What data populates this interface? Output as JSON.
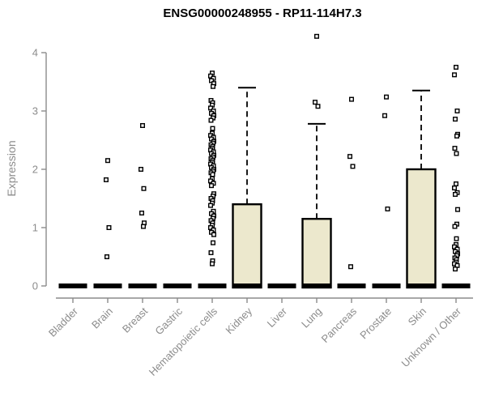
{
  "chart_data": {
    "type": "boxplot",
    "title": "ENSG00000248955 - RP11-114H7.3",
    "ylabel": "Expression",
    "xlabel": "",
    "ylim": [
      0,
      4
    ],
    "yticks": [
      0,
      1,
      2,
      3,
      4
    ],
    "grid": false,
    "legend": "none",
    "box_fill_color": "#ece8cd",
    "box_stroke_color": "#000000",
    "axis_color": "#8c8c8c",
    "categories": [
      "Bladder",
      "Brain",
      "Breast",
      "Gastric",
      "Hematopoietic cells",
      "Kidney",
      "Liver",
      "Lung",
      "Pancreas",
      "Prostate",
      "Skin",
      "Unknown / Other"
    ],
    "boxes": [
      {
        "category": "Bladder",
        "median": 0,
        "q1": 0,
        "q3": 0,
        "whisker_low": 0,
        "whisker_high": 0,
        "outliers": []
      },
      {
        "category": "Brain",
        "median": 0,
        "q1": 0,
        "q3": 0,
        "whisker_low": 0,
        "whisker_high": 0,
        "outliers": [
          2.15,
          1.82,
          1.0,
          0.5
        ]
      },
      {
        "category": "Breast",
        "median": 0,
        "q1": 0,
        "q3": 0,
        "whisker_low": 0,
        "whisker_high": 0,
        "outliers": [
          2.75,
          2.0,
          1.67,
          1.25,
          1.08,
          1.02
        ]
      },
      {
        "category": "Gastric",
        "median": 0,
        "q1": 0,
        "q3": 0,
        "whisker_low": 0,
        "whisker_high": 0,
        "outliers": []
      },
      {
        "category": "Hematopoietic cells",
        "median": 0,
        "q1": 0,
        "q3": 0,
        "whisker_low": 0,
        "whisker_high": 0,
        "outliers": [
          3.65,
          3.6,
          3.56,
          3.52,
          3.47,
          3.42,
          3.18,
          3.14,
          3.1,
          3.05,
          3.0,
          2.96,
          2.92,
          2.88,
          2.84,
          2.7,
          2.62,
          2.58,
          2.55,
          2.52,
          2.48,
          2.45,
          2.42,
          2.39,
          2.36,
          2.33,
          2.3,
          2.27,
          2.24,
          2.21,
          2.18,
          2.15,
          2.12,
          2.09,
          2.06,
          2.03,
          2.0,
          1.97,
          1.94,
          1.91,
          1.84,
          1.8,
          1.76,
          1.72,
          1.58,
          1.54,
          1.5,
          1.46,
          1.42,
          1.38,
          1.28,
          1.24,
          1.2,
          1.16,
          1.12,
          1.08,
          1.04,
          1.0,
          0.96,
          0.92,
          0.88,
          0.74,
          0.57,
          0.43,
          0.38
        ]
      },
      {
        "category": "Kidney",
        "median": 0,
        "q1": 0,
        "q3": 1.4,
        "whisker_low": 0,
        "whisker_high": 3.4,
        "outliers": []
      },
      {
        "category": "Liver",
        "median": 0,
        "q1": 0,
        "q3": 0,
        "whisker_low": 0,
        "whisker_high": 0,
        "outliers": []
      },
      {
        "category": "Lung",
        "median": 0,
        "q1": 0,
        "q3": 1.15,
        "whisker_low": 0,
        "whisker_high": 2.78,
        "outliers": [
          4.28,
          3.15,
          3.08
        ]
      },
      {
        "category": "Pancreas",
        "median": 0,
        "q1": 0,
        "q3": 0,
        "whisker_low": 0,
        "whisker_high": 0,
        "outliers": [
          3.2,
          2.22,
          2.05,
          0.33
        ]
      },
      {
        "category": "Prostate",
        "median": 0,
        "q1": 0,
        "q3": 0,
        "whisker_low": 0,
        "whisker_high": 0,
        "outliers": [
          3.24,
          2.92,
          1.32
        ]
      },
      {
        "category": "Skin",
        "median": 0,
        "q1": 0,
        "q3": 2.0,
        "whisker_low": 0,
        "whisker_high": 3.35,
        "outliers": []
      },
      {
        "category": "Unknown / Other",
        "median": 0,
        "q1": 0,
        "q3": 0,
        "whisker_low": 0,
        "whisker_high": 0,
        "outliers": [
          3.75,
          3.62,
          3.0,
          2.86,
          2.6,
          2.57,
          2.36,
          2.27,
          1.75,
          1.68,
          1.6,
          1.57,
          1.31,
          1.06,
          1.02,
          0.81,
          0.71,
          0.67,
          0.63,
          0.59,
          0.55,
          0.52,
          0.48,
          0.45,
          0.41,
          0.38,
          0.35,
          0.29
        ]
      }
    ]
  }
}
